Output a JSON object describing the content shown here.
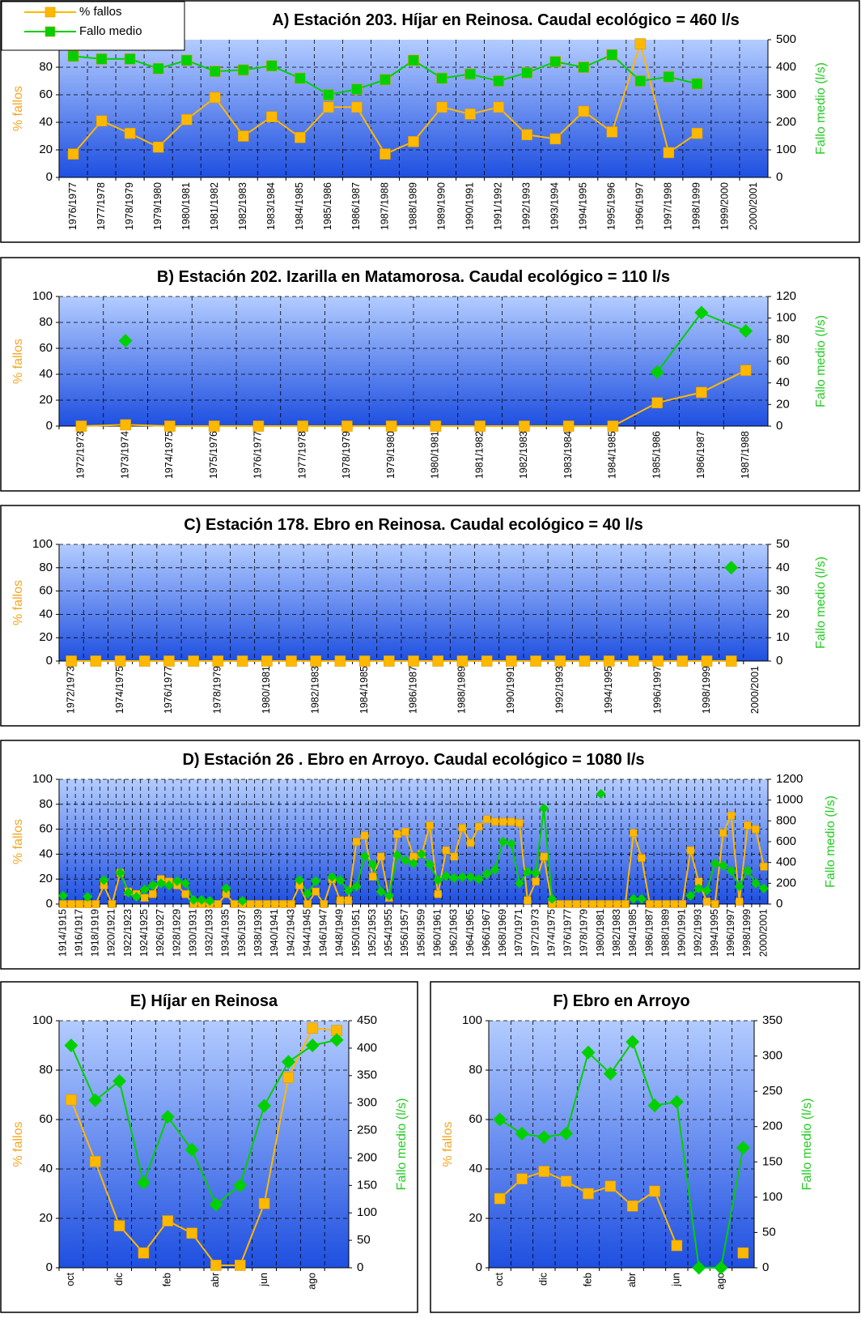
{
  "chart_data": [
    {
      "type": "line",
      "title": "A) Estación 203. Híjar en Reinosa. Caudal ecológico = 460 l/s",
      "categories": [
        "1976/1977",
        "1977/1978",
        "1978/1979",
        "1979/1980",
        "1980/1981",
        "1981/1982",
        "1982/1983",
        "1983/1984",
        "1984/1985",
        "1985/1986",
        "1986/1987",
        "1987/1988",
        "1988/1989",
        "1989/1990",
        "1990/1991",
        "1991/1992",
        "1992/1993",
        "1993/1994",
        "1994/1995",
        "1995/1996",
        "1996/1997",
        "1997/1998",
        "1998/1999",
        "1999/2000",
        "2000/2001"
      ],
      "series": [
        {
          "name": "% fallos",
          "color": "#ffb800",
          "marker": "square",
          "values": [
            17,
            41,
            32,
            22,
            42,
            58,
            30,
            44,
            29,
            51,
            51,
            17,
            26,
            51,
            46,
            51,
            31,
            28,
            48,
            33,
            97,
            18,
            32,
            null,
            null
          ]
        },
        {
          "name": "Fallo medio",
          "color": "#00d000",
          "marker": "square",
          "axis": "y2",
          "values": [
            440,
            430,
            430,
            395,
            425,
            385,
            390,
            405,
            360,
            300,
            320,
            355,
            425,
            360,
            375,
            350,
            380,
            420,
            400,
            445,
            350,
            365,
            340,
            null,
            null
          ]
        }
      ],
      "ylabel": "% fallos",
      "y2label": "Fallo medio (l/s)",
      "ylim": [
        0,
        100
      ],
      "yticks": [
        0,
        20,
        40,
        60,
        80
      ],
      "y2lim": [
        0,
        500
      ],
      "y2ticks": [
        0,
        100,
        200,
        300,
        400,
        500
      ],
      "grid": true,
      "legend": "top-left"
    },
    {
      "type": "line",
      "title": "B) Estación 202. Izarilla en Matamorosa. Caudal ecológico = 110 l/s",
      "categories": [
        "1972/1973",
        "1973/1974",
        "1974/1975",
        "1975/1976",
        "1976/1977",
        "1977/1978",
        "1978/1979",
        "1979/1980",
        "1980/1981",
        "1981/1982",
        "1982/1983",
        "1983/1984",
        "1984/1985",
        "1985/1986",
        "1986/1987",
        "1987/1988"
      ],
      "series": [
        {
          "color": "#ffb800",
          "marker": "square",
          "values": [
            0,
            1,
            0,
            0,
            0,
            0,
            0,
            0,
            0,
            0,
            0,
            0,
            0,
            18,
            26,
            43
          ]
        },
        {
          "color": "#00d000",
          "marker": "diamond",
          "axis": "y2",
          "values": [
            null,
            79,
            null,
            null,
            null,
            null,
            null,
            null,
            null,
            null,
            null,
            null,
            null,
            50,
            105,
            88
          ]
        }
      ],
      "ylabel": "% fallos",
      "y2label": "Fallo medio (l/s)",
      "ylim": [
        0,
        100
      ],
      "yticks": [
        0,
        20,
        40,
        60,
        80,
        100
      ],
      "y2lim": [
        0,
        120
      ],
      "y2ticks": [
        0,
        20,
        40,
        60,
        80,
        100,
        120
      ],
      "grid": true
    },
    {
      "type": "line",
      "title": "C) Estación 178. Ebro en Reinosa. Caudal ecológico = 40 l/s",
      "categories": [
        "1972/1973",
        null,
        "1974/1975",
        null,
        "1976/1977",
        null,
        "1978/1979",
        null,
        "1980/1981",
        null,
        "1982/1983",
        null,
        "1984/1985",
        null,
        "1986/1987",
        null,
        "1988/1989",
        null,
        "1990/1991",
        null,
        "1992/1993",
        null,
        "1994/1995",
        null,
        "1996/1997",
        null,
        "1998/1999",
        null,
        "2000/2001"
      ],
      "series": [
        {
          "color": "#ffb800",
          "marker": "square",
          "values": [
            0,
            0,
            0,
            0,
            0,
            0,
            0,
            0,
            0,
            0,
            0,
            0,
            0,
            0,
            0,
            0,
            0,
            0,
            0,
            0,
            0,
            0,
            0,
            0,
            0,
            0,
            0,
            0,
            null
          ]
        },
        {
          "color": "#00d000",
          "marker": "diamond",
          "axis": "y2",
          "values": [
            null,
            null,
            null,
            null,
            null,
            null,
            null,
            null,
            null,
            null,
            null,
            null,
            null,
            null,
            null,
            null,
            null,
            null,
            null,
            null,
            null,
            null,
            null,
            null,
            null,
            null,
            null,
            40,
            null
          ]
        }
      ],
      "ylabel": "% fallos",
      "y2label": "Fallo medio (l/s)",
      "ylim": [
        0,
        100
      ],
      "yticks": [
        0,
        20,
        40,
        60,
        80,
        100
      ],
      "y2lim": [
        0,
        50
      ],
      "y2ticks": [
        0,
        10,
        20,
        30,
        40,
        50
      ],
      "grid": true
    },
    {
      "type": "line",
      "title": "D) Estación 26 . Ebro en Arroyo. Caudal ecológico = 1080 l/s",
      "categories": [
        "1914/1915",
        null,
        "1916/1917",
        null,
        "1918/1919",
        null,
        "1920/1921",
        null,
        "1922/1923",
        null,
        "1924/1925",
        null,
        "1926/1927",
        null,
        "1928/1929",
        null,
        "1930/1931",
        null,
        "1932/1933",
        null,
        "1934/1935",
        null,
        "1936/1937",
        null,
        "1938/1939",
        null,
        "1940/1941",
        null,
        "1942/1943",
        null,
        "1944/1945",
        null,
        "1946/1947",
        null,
        "1948/1949",
        null,
        "1950/1951",
        null,
        "1952/1953",
        null,
        "1954/1955",
        null,
        "1956/1957",
        null,
        "1958/1959",
        null,
        "1960/1961",
        null,
        "1962/1963",
        null,
        "1964/1965",
        null,
        "1966/1967",
        null,
        "1968/1969",
        null,
        "1970/1971",
        null,
        "1972/1973",
        null,
        "1974/1975",
        null,
        "1976/1977",
        null,
        "1978/1979",
        null,
        "1980/1981",
        null,
        "1982/1983",
        null,
        "1984/1985",
        null,
        "1986/1987",
        null,
        "1988/1989",
        null,
        "1990/1991",
        null,
        "1992/1993",
        null,
        "1994/1995",
        null,
        "1996/1997",
        null,
        "1998/1999",
        null,
        "2000/2001"
      ],
      "series": [
        {
          "color": "#ffb800",
          "marker": "square",
          "values": [
            0,
            0,
            0,
            0,
            0,
            15,
            0,
            25,
            10,
            8,
            5,
            8,
            20,
            18,
            15,
            8,
            0,
            0,
            0,
            0,
            8,
            0,
            0,
            0,
            0,
            0,
            0,
            0,
            0,
            15,
            0,
            10,
            0,
            20,
            3,
            3,
            50,
            55,
            22,
            38,
            5,
            56,
            58,
            38,
            40,
            63,
            8,
            43,
            38,
            61,
            49,
            62,
            68,
            66,
            66,
            66,
            65,
            3,
            18,
            38,
            0,
            0,
            0,
            0,
            0,
            0,
            0,
            0,
            0,
            0,
            57,
            37,
            0,
            0,
            0,
            0,
            0,
            43,
            18,
            2,
            0,
            57,
            71,
            2,
            63,
            60,
            30
          ]
        },
        {
          "color": "#00d000",
          "marker": "diamond",
          "axis": "y2",
          "values": [
            80,
            null,
            null,
            70,
            null,
            230,
            null,
            300,
            110,
            70,
            140,
            180,
            200,
            180,
            220,
            200,
            40,
            40,
            30,
            null,
            150,
            null,
            30,
            null,
            null,
            null,
            null,
            null,
            null,
            230,
            100,
            220,
            null,
            260,
            230,
            130,
            170,
            460,
            380,
            120,
            80,
            470,
            420,
            390,
            480,
            380,
            230,
            270,
            250,
            260,
            260,
            240,
            290,
            330,
            600,
            580,
            200,
            310,
            300,
            920,
            50,
            null,
            null,
            null,
            null,
            null,
            1060,
            null,
            null,
            null,
            50,
            50,
            null,
            null,
            null,
            null,
            null,
            80,
            150,
            130,
            390,
            370,
            320,
            170,
            320,
            200,
            150
          ]
        }
      ],
      "ylabel": "% fallos",
      "y2label": "Fallo medio (l/s)",
      "ylim": [
        0,
        100
      ],
      "yticks": [
        0,
        20,
        40,
        60,
        80,
        100
      ],
      "y2lim": [
        0,
        1200
      ],
      "y2ticks": [
        0,
        200,
        400,
        600,
        800,
        1000,
        1200
      ],
      "grid": true
    },
    {
      "type": "line",
      "title": "E) Híjar en Reinosa",
      "categories": [
        "oct",
        null,
        "dic",
        null,
        "feb",
        null,
        "abr",
        null,
        "jun",
        null,
        "ago",
        null
      ],
      "series": [
        {
          "color": "#ffb800",
          "marker": "square",
          "values": [
            68,
            43,
            17,
            6,
            19,
            14,
            1,
            1,
            26,
            77,
            97,
            96
          ]
        },
        {
          "color": "#00d000",
          "marker": "diamond",
          "axis": "y2",
          "values": [
            405,
            305,
            340,
            155,
            275,
            215,
            115,
            150,
            295,
            375,
            405,
            415
          ]
        }
      ],
      "ylabel": "% fallos",
      "y2label": "Fallo medio (l/s)",
      "ylim": [
        0,
        100
      ],
      "yticks": [
        0,
        20,
        40,
        60,
        80,
        100
      ],
      "y2lim": [
        0,
        450
      ],
      "y2ticks": [
        0,
        50,
        100,
        150,
        200,
        250,
        300,
        350,
        400,
        450
      ],
      "grid": true
    },
    {
      "type": "line",
      "title": "F) Ebro en Arroyo",
      "categories": [
        "oct",
        null,
        "dic",
        null,
        "feb",
        null,
        "abr",
        null,
        "jun",
        null,
        "ago",
        null
      ],
      "series": [
        {
          "color": "#ffb800",
          "marker": "square",
          "values": [
            28,
            36,
            39,
            35,
            30,
            33,
            25,
            31,
            9,
            null,
            null,
            6
          ]
        },
        {
          "color": "#00d000",
          "marker": "diamond",
          "axis": "y2",
          "values": [
            210,
            190,
            185,
            190,
            305,
            275,
            320,
            230,
            235,
            0,
            0,
            170
          ]
        }
      ],
      "ylabel": "% fallos",
      "y2label": "Fallo medio (l/s)",
      "ylim": [
        0,
        100
      ],
      "yticks": [
        0,
        20,
        40,
        60,
        80,
        100
      ],
      "y2lim": [
        0,
        350
      ],
      "y2ticks": [
        0,
        50,
        100,
        150,
        200,
        250,
        300,
        350
      ],
      "grid": true
    }
  ]
}
